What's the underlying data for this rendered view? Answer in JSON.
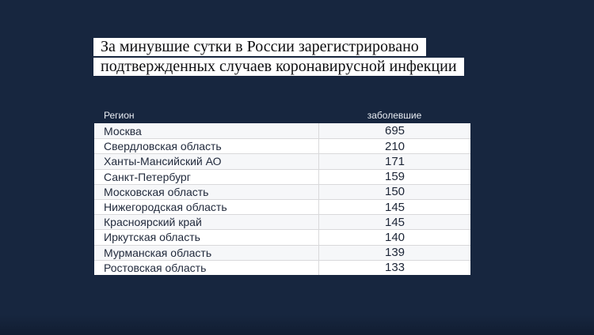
{
  "colors": {
    "background": "#17263f",
    "headline_box": "#ffffff",
    "headline_text": "#0e0e10",
    "column_header_text": "#e9edf3",
    "table_background": "#ffffff",
    "table_text": "#222b3d",
    "row_divider": "#d9d9db"
  },
  "headline": {
    "lines": [
      "За минувшие сутки в России зарегистрировано",
      "подтвержденных случаев коронавирусной инфекции"
    ]
  },
  "chart_data": {
    "type": "table",
    "title": "За минувшие сутки в России зарегистрировано подтвержденных случаев коронавирусной инфекции",
    "columns": [
      "Регион",
      "заболевшие"
    ],
    "rows": [
      [
        "Москва",
        695
      ],
      [
        "Свердловская область",
        210
      ],
      [
        "Ханты-Мансийский АО",
        171
      ],
      [
        "Санкт-Петербург",
        159
      ],
      [
        "Московская область",
        150
      ],
      [
        "Нижегородская область",
        145
      ],
      [
        "Красноярский край",
        145
      ],
      [
        "Иркутская область",
        140
      ],
      [
        "Мурманская область",
        139
      ],
      [
        "Ростовская область",
        133
      ]
    ]
  }
}
